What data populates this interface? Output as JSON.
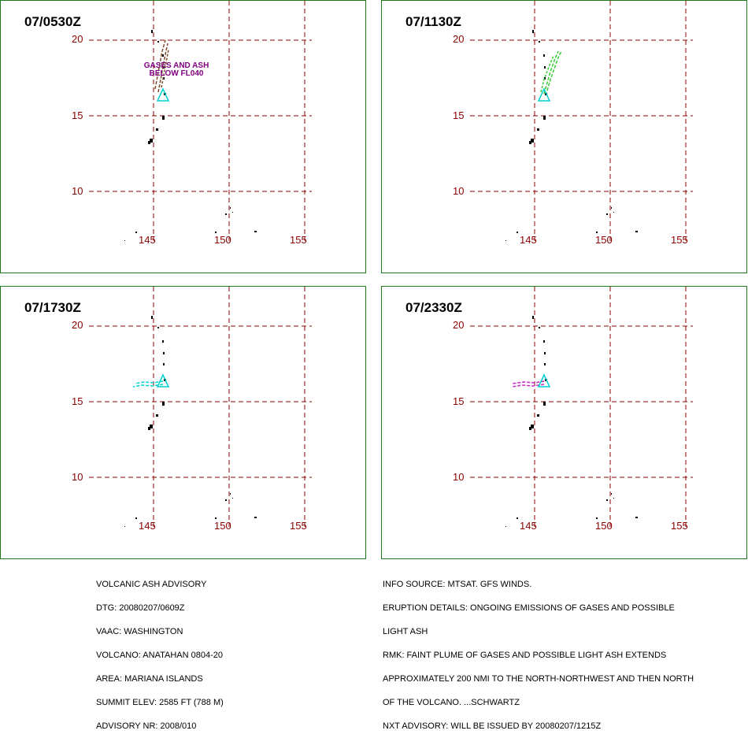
{
  "panels": [
    {
      "title": "07/0530Z",
      "ash_color": "#7a4a2a",
      "annotation": [
        "GASES AND ASH",
        "BELOW FL040"
      ]
    },
    {
      "title": "07/1130Z",
      "ash_color": "#33cc33"
    },
    {
      "title": "07/1730Z",
      "ash_color": "#00d0d0"
    },
    {
      "title": "07/2330Z",
      "ash_color": "#cc22cc"
    }
  ],
  "lat_labels": [
    "20",
    "15",
    "10"
  ],
  "lon_labels": [
    "145",
    "150",
    "155"
  ],
  "colors": {
    "grid": "#8b0000",
    "border": "#1c7a1c",
    "volcano": "#00d0d0",
    "annotation": "#800080"
  },
  "advisory_left": [
    "VOLCANIC ASH ADVISORY",
    "DTG: 20080207/0609Z",
    "VAAC: WASHINGTON",
    "VOLCANO: ANATAHAN 0804-20",
    "AREA: MARIANA ISLANDS",
    "SUMMIT ELEV: 2585 FT (788 M)",
    "ADVISORY NR: 2008/010"
  ],
  "advisory_right": [
    "INFO SOURCE: MTSAT. GFS WINDS.",
    "ERUPTION DETAILS: ONGOING EMISSIONS OF GASES AND POSSIBLE",
    "LIGHT ASH",
    "RMK: FAINT PLUME OF GASES AND POSSIBLE LIGHT ASH EXTENDS",
    "APPROXIMATELY 200 NMI TO THE NORTH-NORTHWEST AND THEN NORTH",
    "OF THE VOLCANO. ...SCHWARTZ",
    "NXT ADVISORY: WILL BE ISSUED BY 20080207/1215Z"
  ]
}
